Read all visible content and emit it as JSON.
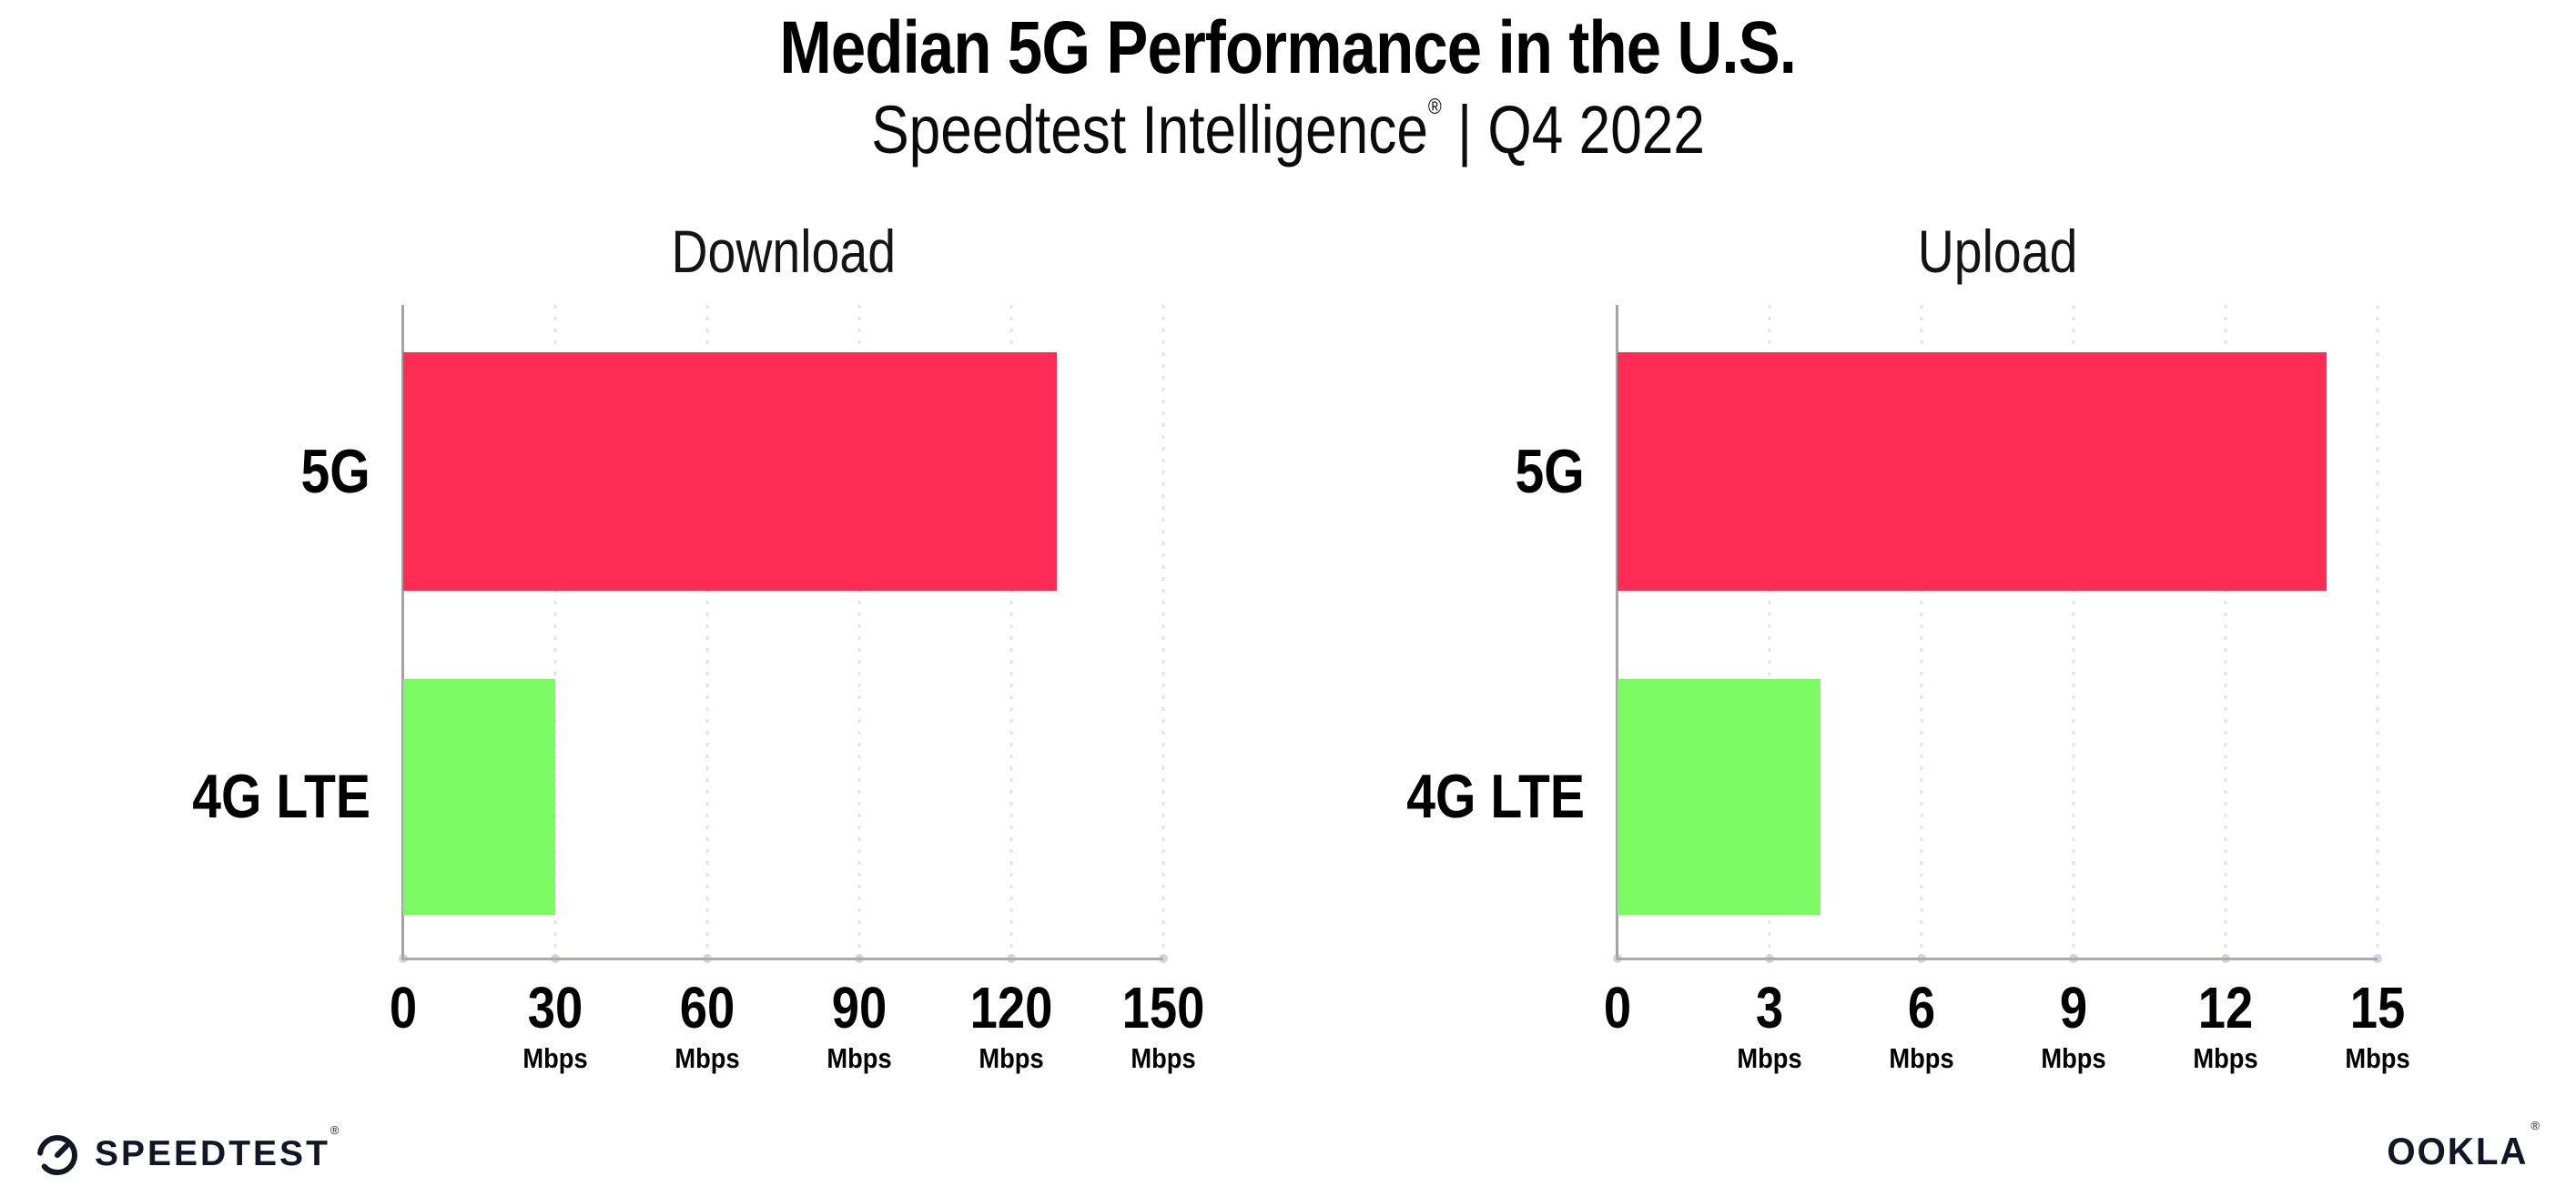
{
  "header": {
    "title": "Median 5G Performance in the U.S.",
    "subtitle_brand": "Speedtest Intelligence",
    "subtitle_reg": "®",
    "subtitle_rest": " | Q4 2022"
  },
  "colors": {
    "bar_5g": "#FF2D55",
    "bar_4g": "#7BFA63",
    "axis": "#a3a3a8",
    "gridline": "#e2e3ec",
    "text": "#000000"
  },
  "chart_data": [
    {
      "type": "bar",
      "orientation": "horizontal",
      "title": "Download",
      "categories": [
        "5G",
        "4G LTE"
      ],
      "values": [
        129,
        30
      ],
      "unit": "Mbps",
      "xlim": [
        0,
        150
      ],
      "xticks": [
        0,
        30,
        60,
        90,
        120,
        150
      ],
      "bar_colors": [
        "#FF2D55",
        "#7BFA63"
      ],
      "grid": "vertical-dotted",
      "legend": "none"
    },
    {
      "type": "bar",
      "orientation": "horizontal",
      "title": "Upload",
      "categories": [
        "5G",
        "4G LTE"
      ],
      "values": [
        14,
        4
      ],
      "unit": "Mbps",
      "xlim": [
        0,
        15
      ],
      "xticks": [
        0,
        3,
        6,
        9,
        12,
        15
      ],
      "bar_colors": [
        "#FF2D55",
        "#7BFA63"
      ],
      "grid": "vertical-dotted",
      "legend": "none"
    }
  ],
  "footer": {
    "speedtest_label": "SPEEDTEST",
    "speedtest_reg": "®",
    "ookla_label": "OOKLA",
    "ookla_reg": "®"
  }
}
